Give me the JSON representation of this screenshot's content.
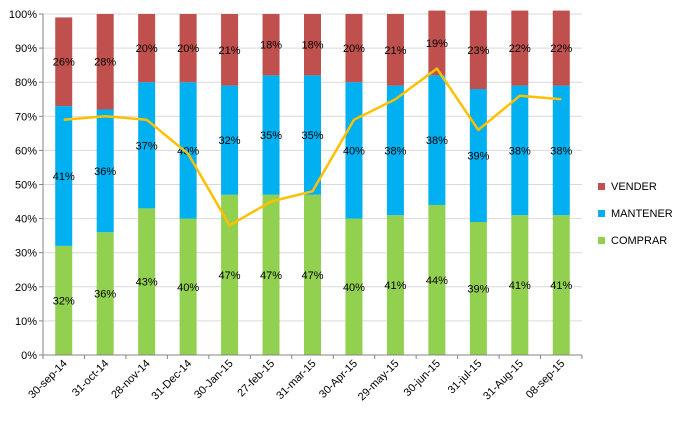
{
  "chart_data": {
    "type": "bar",
    "stacked": true,
    "categories": [
      "30-sep-14",
      "31-oct-14",
      "28-nov-14",
      "31-Dec-14",
      "30-Jan-15",
      "27-feb-15",
      "31-mar-15",
      "30-Apr-15",
      "29-may-15",
      "30-jun-15",
      "31-jul-15",
      "31-Aug-15",
      "08-sep-15"
    ],
    "series": [
      {
        "name": "COMPRAR",
        "color": "#92d050",
        "values": [
          32,
          36,
          43,
          40,
          47,
          47,
          47,
          40,
          41,
          44,
          39,
          41,
          41
        ]
      },
      {
        "name": "MANTENER",
        "color": "#00b0f0",
        "values": [
          41,
          36,
          37,
          40,
          32,
          35,
          35,
          40,
          38,
          38,
          39,
          38,
          38
        ]
      },
      {
        "name": "VENDER",
        "color": "#c0504d",
        "values": [
          26,
          28,
          20,
          20,
          21,
          18,
          18,
          20,
          21,
          19,
          23,
          22,
          22
        ]
      }
    ],
    "data_labels": {
      "COMPRAR": [
        "32%",
        "36%",
        "43%",
        "40%",
        "47%",
        "47%",
        "47%",
        "40%",
        "41%",
        "44%",
        "39%",
        "41%",
        "41%"
      ],
      "MANTENER": [
        "41%",
        "36%",
        "37%",
        "40%",
        "32%",
        "35%",
        "35%",
        "40%",
        "38%",
        "38%",
        "39%",
        "38%",
        "38%"
      ],
      "VENDER": [
        "26%",
        "28%",
        "20%",
        "20%",
        "21%",
        "18%",
        "18%",
        "20%",
        "21%",
        "19%",
        "23%",
        "22%",
        "22%"
      ]
    },
    "line": {
      "color": "#ffc000",
      "values": [
        69,
        70,
        69,
        59,
        38,
        45,
        48,
        69,
        75,
        84,
        66,
        76,
        75
      ]
    },
    "yticks": [
      "0%",
      "10%",
      "20%",
      "30%",
      "40%",
      "50%",
      "60%",
      "70%",
      "80%",
      "90%",
      "100%"
    ],
    "ylim": [
      0,
      100
    ],
    "grid": true,
    "legend": {
      "position": "right",
      "order": [
        "VENDER",
        "MANTENER",
        "COMPRAR"
      ]
    },
    "title": "",
    "xlabel": "",
    "ylabel": ""
  }
}
